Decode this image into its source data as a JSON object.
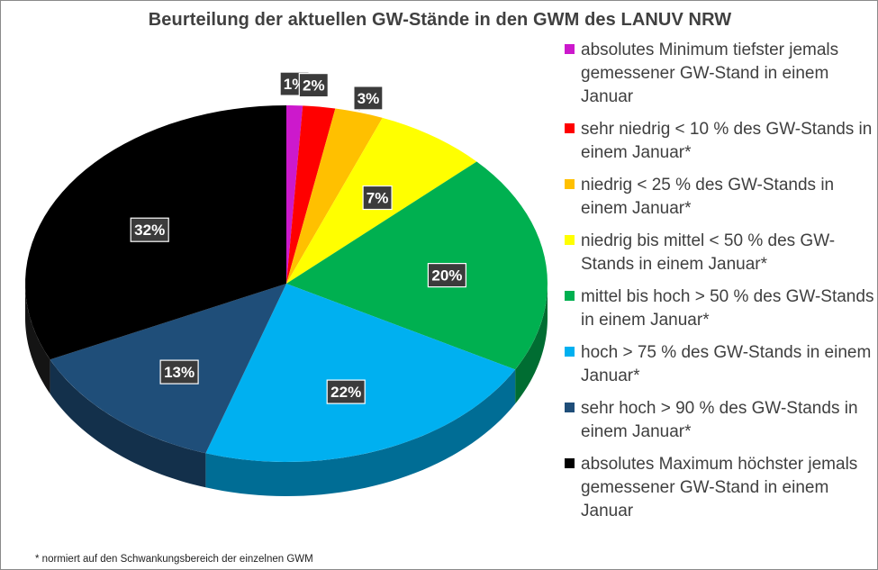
{
  "chart_data": {
    "type": "pie",
    "title": "Beurteilung der aktuellen GW-Stände in den GWM des LANUV NRW",
    "slices": [
      {
        "label": "absolutes Minimum  tiefster jemals gemessener GW-Stand in einem Januar",
        "value": 1,
        "display": "1%",
        "color": "#cc19cc"
      },
      {
        "label": "sehr niedrig  < 10 % des GW-Stands in einem Januar*",
        "value": 2,
        "display": "2%",
        "color": "#ff0000"
      },
      {
        "label": "niedrig   < 25 % des GW-Stands in einem Januar*",
        "value": 3,
        "display": "3%",
        "color": "#ffc000"
      },
      {
        "label": "niedrig bis mittel  < 50 % des GW-Stands in einem Januar*",
        "value": 7,
        "display": "7%",
        "color": "#ffff00"
      },
      {
        "label": "mittel bis hoch  > 50 % des GW-Stands in einem Januar*",
        "value": 20,
        "display": "20%",
        "color": "#00b050"
      },
      {
        "label": "hoch  > 75 % des GW-Stands in einem Januar*",
        "value": 22,
        "display": "22%",
        "color": "#00b0f0"
      },
      {
        "label": "sehr hoch  > 90 % des GW-Stands in einem Januar*",
        "value": 13,
        "display": "13%",
        "color": "#1f4e79"
      },
      {
        "label": "absolutes Maximum  höchster jemals gemessener GW-Stand in einem Januar",
        "value": 32,
        "display": "32%",
        "color": "#000000"
      }
    ],
    "legend_position": "right"
  },
  "footnote": "* normiert auf den Schwankungsbereich der einzelnen GWM"
}
